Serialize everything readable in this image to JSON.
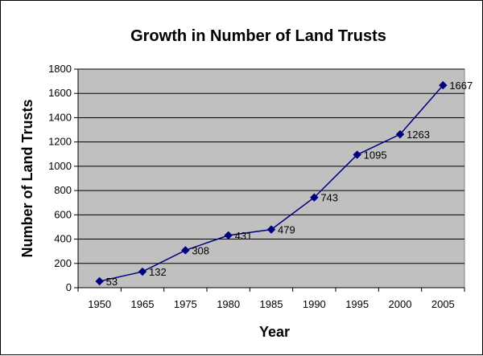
{
  "chart_data": {
    "type": "line",
    "title": "Growth in Number of Land Trusts",
    "xlabel": "Year",
    "ylabel": "Number of Land Trusts",
    "categories": [
      "1950",
      "1965",
      "1975",
      "1980",
      "1985",
      "1990",
      "1995",
      "2000",
      "2005"
    ],
    "values": [
      53,
      132,
      308,
      431,
      479,
      743,
      1095,
      1263,
      1667
    ],
    "data_labels": [
      "53",
      "132",
      "308",
      "431",
      "479",
      "743",
      "1095",
      "1263",
      "1667"
    ],
    "ylim": [
      0,
      1800
    ],
    "yticks": [
      0,
      200,
      400,
      600,
      800,
      1000,
      1200,
      1400,
      1600,
      1800
    ],
    "grid": true,
    "legend": "none",
    "colors": {
      "plot_background": "#c0c0c0",
      "series": "#000080",
      "gridline": "#000000"
    }
  }
}
